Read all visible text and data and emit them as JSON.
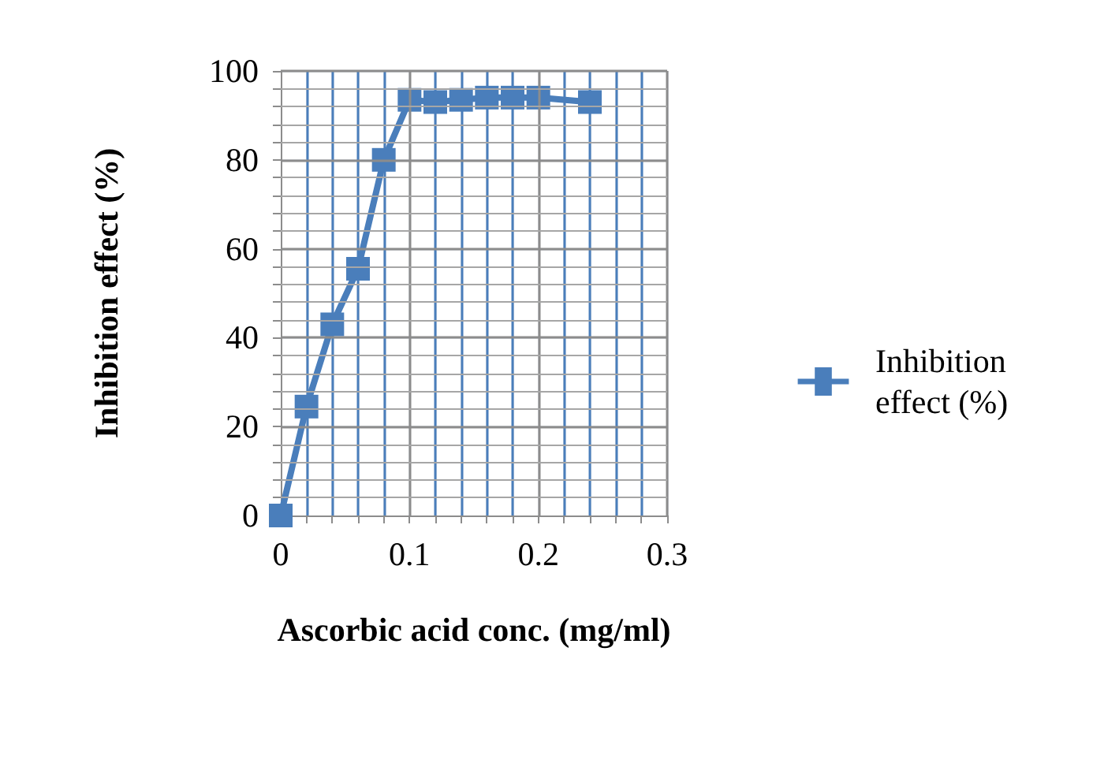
{
  "chart_data": {
    "type": "line",
    "xlabel": "Ascorbic acid conc. (mg/ml)",
    "ylabel": "Inhibition effect (%)",
    "x": [
      0,
      0.02,
      0.04,
      0.06,
      0.08,
      0.1,
      0.12,
      0.14,
      0.16,
      0.18,
      0.2,
      0.24
    ],
    "series": [
      {
        "name": "Inhibition effect (%)",
        "color": "#4a7ebb",
        "values": [
          0,
          24.5,
          43,
          55.5,
          80,
          93.5,
          93,
          93.5,
          94,
          94,
          94,
          93
        ]
      }
    ],
    "xlim": [
      0,
      0.3
    ],
    "xticks": [
      0,
      {
        "value": 0.02,
        "label": null
      },
      {
        "value": 0.04,
        "label": null
      },
      {
        "value": 0.06,
        "label": null
      },
      {
        "value": 0.08,
        "label": null
      },
      0.1,
      {
        "value": 0.12,
        "label": null
      },
      {
        "value": 0.14,
        "label": null
      },
      {
        "value": 0.16,
        "label": null
      },
      {
        "value": 0.18,
        "label": null
      },
      0.2,
      {
        "value": 0.22,
        "label": null
      },
      {
        "value": 0.24,
        "label": null
      },
      {
        "value": 0.26,
        "label": null
      },
      {
        "value": 0.28,
        "label": null
      },
      0.3
    ],
    "ylim": [
      0,
      100
    ],
    "yticks": [
      0,
      {
        "value": 4,
        "label": null
      },
      {
        "value": 8,
        "label": null
      },
      {
        "value": 12,
        "label": null
      },
      {
        "value": 16,
        "label": null
      },
      20,
      {
        "value": 24,
        "label": null
      },
      {
        "value": 28,
        "label": null
      },
      {
        "value": 32,
        "label": null
      },
      {
        "value": 36,
        "label": null
      },
      40,
      {
        "value": 44,
        "label": null
      },
      {
        "value": 48,
        "label": null
      },
      {
        "value": 52,
        "label": null
      },
      {
        "value": 56,
        "label": null
      },
      60,
      {
        "value": 64,
        "label": null
      },
      {
        "value": 68,
        "label": null
      },
      {
        "value": 72,
        "label": null
      },
      {
        "value": 76,
        "label": null
      },
      80,
      {
        "value": 84,
        "label": null
      },
      {
        "value": 88,
        "label": null
      },
      {
        "value": 92,
        "label": null
      },
      {
        "value": 96,
        "label": null
      },
      100
    ],
    "grid": true,
    "legend": "right",
    "marker": "square",
    "line_style": "solid"
  }
}
